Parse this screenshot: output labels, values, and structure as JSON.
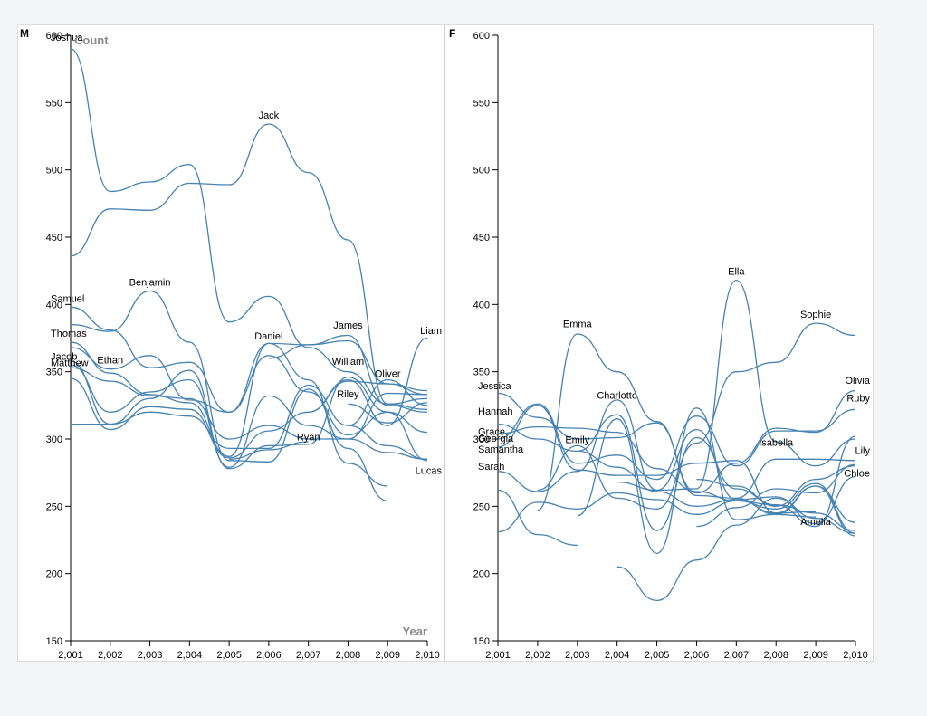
{
  "colors": {
    "line": "#4682b4",
    "axis_title": "#8a8a8a",
    "background": "#f4f5f7"
  },
  "chart_data": [
    {
      "type": "line",
      "panel_label": "M",
      "ylabel": "Count",
      "xlabel": "Year",
      "x": [
        2001,
        2002,
        2003,
        2004,
        2005,
        2006,
        2007,
        2008,
        2009,
        2010
      ],
      "x_tick_labels": [
        "2,001",
        "2,002",
        "2,003",
        "2,004",
        "2,005",
        "2,006",
        "2,007",
        "2,008",
        "2,009",
        "2,010"
      ],
      "ylim": [
        150,
        600
      ],
      "y_ticks": [
        150,
        200,
        250,
        300,
        350,
        400,
        450,
        500,
        550,
        600
      ],
      "series": [
        {
          "name": "Joshua",
          "values": [
            590,
            484,
            491,
            504,
            387,
            406,
            368,
            350,
            326,
            322
          ]
        },
        {
          "name": "Jack",
          "values": [
            436,
            471,
            470,
            490,
            489,
            534,
            498,
            448,
            326,
            330
          ]
        },
        {
          "name": "Samuel",
          "values": [
            398,
            381,
            353,
            357,
            320,
            371,
            344,
            282,
            265,
            null
          ]
        },
        {
          "name": "Benjamin",
          "values": [
            385,
            380,
            410,
            372,
            284,
            283,
            337,
            293,
            254,
            null
          ]
        },
        {
          "name": "Thomas",
          "values": [
            372,
            349,
            333,
            327,
            287,
            371,
            370,
            377,
            325,
            320
          ]
        },
        {
          "name": "Jacob",
          "values": [
            355,
            320,
            335,
            344,
            279,
            332,
            310,
            300,
            334,
            333
          ]
        },
        {
          "name": "Matthew",
          "values": [
            353,
            343,
            332,
            330,
            300,
            310,
            300,
            300,
            290,
            285
          ]
        },
        {
          "name": "Ethan",
          "values": [
            358,
            311,
            330,
            351,
            278,
            295,
            296,
            346,
            320,
            284
          ]
        },
        {
          "name": "Daniel",
          "values": [
            368,
            352,
            362,
            329,
            320,
            362,
            335,
            303,
            320,
            305
          ]
        },
        {
          "name": "Lucas",
          "values": [
            311,
            311,
            320,
            317,
            293,
            293,
            340,
            310,
            295,
            285
          ]
        },
        {
          "name": "Liam",
          "values": [
            345,
            307,
            324,
            322,
            286,
            306,
            320,
            344,
            310,
            375
          ]
        },
        {
          "name": "James",
          "values": [
            null,
            null,
            null,
            null,
            null,
            360,
            370,
            373,
            341,
            336
          ]
        },
        {
          "name": "William",
          "values": [
            null,
            null,
            null,
            null,
            null,
            null,
            320,
            343,
            341,
            333
          ]
        },
        {
          "name": "Riley",
          "values": [
            null,
            null,
            null,
            null,
            null,
            null,
            null,
            326,
            312,
            327
          ]
        },
        {
          "name": "Oliver",
          "values": [
            null,
            null,
            null,
            null,
            null,
            null,
            null,
            310,
            344,
            325
          ]
        },
        {
          "name": "Ryan",
          "values": [
            null,
            null,
            null,
            null,
            285,
            292,
            298,
            null,
            null,
            null
          ]
        }
      ],
      "labels": [
        {
          "text": "Joshua",
          "x": 2001,
          "y": 596
        },
        {
          "text": "Jack",
          "x": 2006,
          "y": 538
        },
        {
          "text": "Samuel",
          "x": 2001,
          "y": 402
        },
        {
          "text": "Benjamin",
          "x": 2003,
          "y": 414
        },
        {
          "text": "Thomas",
          "x": 2001,
          "y": 376
        },
        {
          "text": "Jacob",
          "x": 2001,
          "y": 359
        },
        {
          "text": "Matthew",
          "x": 2001,
          "y": 354
        },
        {
          "text": "Ethan",
          "x": 2002,
          "y": 356
        },
        {
          "text": "Daniel",
          "x": 2006,
          "y": 374
        },
        {
          "text": "James",
          "x": 2008,
          "y": 382
        },
        {
          "text": "William",
          "x": 2008,
          "y": 355
        },
        {
          "text": "Riley",
          "x": 2008,
          "y": 331
        },
        {
          "text": "Oliver",
          "x": 2009,
          "y": 346
        },
        {
          "text": "Ryan",
          "x": 2007,
          "y": 299
        },
        {
          "text": "Liam",
          "x": 2010,
          "y": 378
        },
        {
          "text": "Lucas",
          "x": 2010,
          "y": 274
        }
      ]
    },
    {
      "type": "line",
      "panel_label": "F",
      "ylabel": "",
      "xlabel": "",
      "x": [
        2001,
        2002,
        2003,
        2004,
        2005,
        2006,
        2007,
        2008,
        2009,
        2010
      ],
      "x_tick_labels": [
        "2,001",
        "2,002",
        "2,003",
        "2,004",
        "2,005",
        "2,006",
        "2,007",
        "2,008",
        "2,009",
        "2,010"
      ],
      "ylim": [
        150,
        600
      ],
      "y_ticks": [
        150,
        200,
        250,
        300,
        350,
        400,
        450,
        500,
        550,
        600
      ],
      "series": [
        {
          "name": "Ella",
          "values": [
            null,
            null,
            null,
            268,
            262,
            263,
            418,
            298,
            280,
            300
          ]
        },
        {
          "name": "Sophie",
          "values": [
            null,
            262,
            295,
            256,
            248,
            297,
            350,
            357,
            386,
            377
          ]
        },
        {
          "name": "Emma",
          "values": [
            null,
            247,
            378,
            350,
            313,
            258,
            256,
            244,
            242,
            null
          ]
        },
        {
          "name": "Jessica",
          "values": [
            334,
            316,
            300,
            301,
            312,
            260,
            282,
            308,
            305,
            336
          ]
        },
        {
          "name": "Charlotte",
          "values": [
            300,
            326,
            282,
            288,
            270,
            317,
            280,
            306,
            306,
            322
          ]
        },
        {
          "name": "Hannah",
          "values": [
            311,
            300,
            291,
            318,
            232,
            301,
            263,
            251,
            245,
            232
          ]
        },
        {
          "name": "Grace",
          "values": [
            304,
            309,
            308,
            305,
            278,
            261,
            254,
            248,
            267,
            230
          ]
        },
        {
          "name": "Georgia",
          "values": [
            294,
            325,
            277,
            273,
            273,
            282,
            284,
            245,
            265,
            238
          ]
        },
        {
          "name": "Emily",
          "values": [
            null,
            null,
            291,
            279,
            261,
            250,
            255,
            245,
            246,
            null
          ]
        },
        {
          "name": "Samantha",
          "values": [
            276,
            261,
            276,
            329,
            262,
            307,
            255,
            257,
            237,
            272
          ]
        },
        {
          "name": "Sarah",
          "values": [
            262,
            229,
            221,
            null,
            null,
            null,
            null,
            null,
            null,
            null
          ]
        },
        {
          "name": "Isabella",
          "values": [
            null,
            null,
            null,
            null,
            null,
            null,
            256,
            285,
            285,
            284
          ]
        },
        {
          "name": "Olivia",
          "values": [
            231,
            253,
            248,
            260,
            255,
            244,
            254,
            251,
            235,
            302
          ]
        },
        {
          "name": "Ruby",
          "values": [
            null,
            null,
            null,
            null,
            null,
            235,
            249,
            263,
            260,
            281
          ]
        },
        {
          "name": "Lily",
          "values": [
            null,
            null,
            243,
            315,
            215,
            323,
            240,
            244,
            265,
            228
          ]
        },
        {
          "name": "Amelia",
          "values": [
            null,
            null,
            null,
            205,
            180,
            210,
            236,
            256,
            241,
            230
          ]
        },
        {
          "name": "Chloe",
          "values": [
            null,
            null,
            null,
            null,
            null,
            270,
            265,
            250,
            270,
            280
          ]
        }
      ],
      "labels": [
        {
          "text": "Ella",
          "x": 2007,
          "y": 422
        },
        {
          "text": "Sophie",
          "x": 2009,
          "y": 390
        },
        {
          "text": "Emma",
          "x": 2003,
          "y": 383
        },
        {
          "text": "Jessica",
          "x": 2001,
          "y": 337
        },
        {
          "text": "Charlotte",
          "x": 2004,
          "y": 330
        },
        {
          "text": "Hannah",
          "x": 2001,
          "y": 318
        },
        {
          "text": "Grace",
          "x": 2001,
          "y": 303
        },
        {
          "text": "Georgia",
          "x": 2001,
          "y": 298
        },
        {
          "text": "Emily",
          "x": 2003,
          "y": 297
        },
        {
          "text": "Samantha",
          "x": 2001,
          "y": 290
        },
        {
          "text": "Sarah",
          "x": 2001,
          "y": 277
        },
        {
          "text": "Isabella",
          "x": 2008,
          "y": 295
        },
        {
          "text": "Olivia",
          "x": 2010,
          "y": 341
        },
        {
          "text": "Ruby",
          "x": 2010,
          "y": 328
        },
        {
          "text": "Lily",
          "x": 2010,
          "y": 289
        },
        {
          "text": "Chloe",
          "x": 2010,
          "y": 272
        },
        {
          "text": "Amelia",
          "x": 2009,
          "y": 236
        }
      ]
    }
  ]
}
